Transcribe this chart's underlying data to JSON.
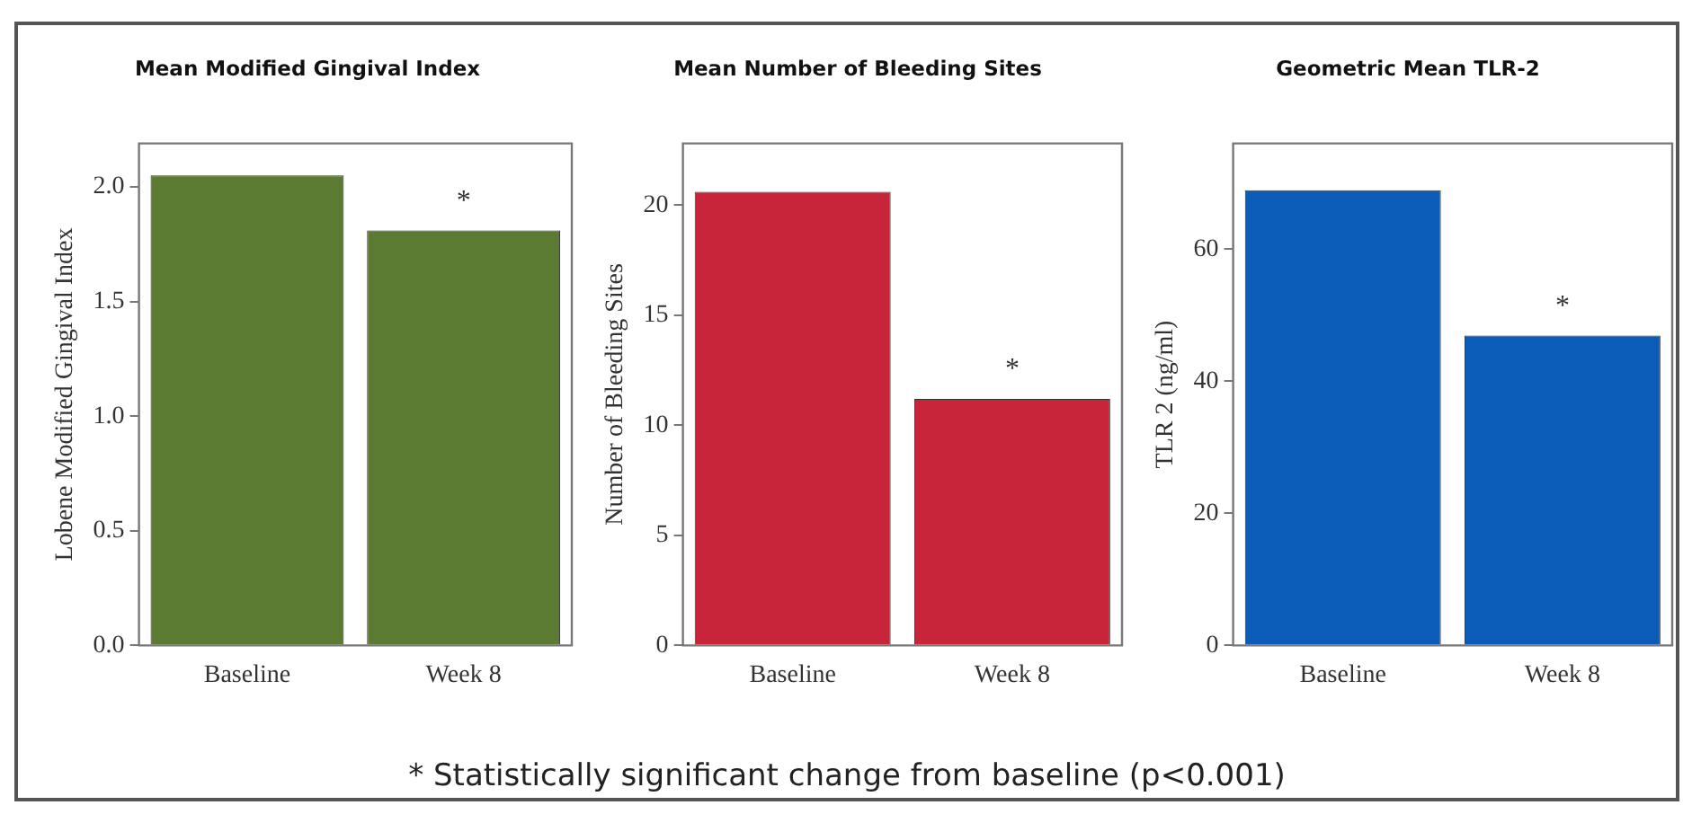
{
  "chart_data": [
    {
      "type": "bar",
      "title": "Mean Modified Gingival Index",
      "ylabel": "Lobene Modified Gingival Index",
      "categories": [
        "Baseline",
        "Week 8"
      ],
      "values": [
        2.05,
        1.81
      ],
      "color": "#5b7a32",
      "ylim": [
        0,
        2.19
      ],
      "yticks": [
        {
          "value": 0,
          "label": "0.0"
        },
        {
          "value": 0.5,
          "label": "0.5"
        },
        {
          "value": 1,
          "label": "1.0"
        },
        {
          "value": 1.5,
          "label": "1.5"
        },
        {
          "value": 2,
          "label": "2.0"
        }
      ],
      "grid": false,
      "legend": false,
      "annotations": [
        {
          "text": "*",
          "x": "Week 8",
          "y": 1.81
        }
      ]
    },
    {
      "type": "bar",
      "title": "Mean Number of Bleeding Sites",
      "ylabel": "Number of Bleeding Sites",
      "categories": [
        "Baseline",
        "Week 8"
      ],
      "values": [
        20.6,
        11.2
      ],
      "color": "#c8243a",
      "ylim": [
        0,
        22.8
      ],
      "yticks": [
        0,
        5,
        10,
        15,
        20
      ],
      "grid": false,
      "legend": false,
      "annotations": [
        {
          "text": "*",
          "x": "Week 8",
          "y": 11.2
        }
      ]
    },
    {
      "type": "bar",
      "title": "Geometric Mean TLR-2",
      "ylabel": "TLR 2 (ng/ml)",
      "categories": [
        "Baseline",
        "Week 8"
      ],
      "values": [
        68.9,
        46.9
      ],
      "color": "#0b5cb8",
      "ylim": [
        0,
        76
      ],
      "yticks": [
        0,
        20,
        40,
        60
      ],
      "grid": false,
      "legend": false,
      "annotations": [
        {
          "text": "*",
          "x": "Week 8",
          "y": 46.9
        },
        "* Statistically significant change from baseline (p<0.001)"
      ]
    }
  ]
}
